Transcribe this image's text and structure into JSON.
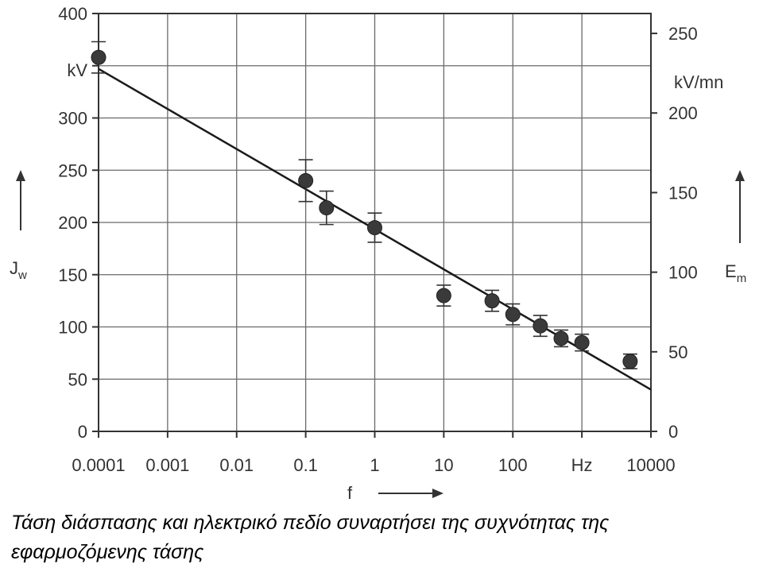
{
  "chart_data": {
    "type": "scatter",
    "x_scale": "log",
    "x_ticks": [
      {
        "value": 0.0001,
        "label": "0.0001"
      },
      {
        "value": 0.001,
        "label": "0.001"
      },
      {
        "value": 0.01,
        "label": "0.01"
      },
      {
        "value": 0.1,
        "label": "0.1"
      },
      {
        "value": 1,
        "label": "1"
      },
      {
        "value": 10,
        "label": "10"
      },
      {
        "value": 100,
        "label": "100"
      },
      {
        "value": 1000,
        "label": "Hz"
      },
      {
        "value": 10000,
        "label": "10000"
      }
    ],
    "xlim": [
      0.0001,
      10000
    ],
    "ylim": [
      0,
      400
    ],
    "y_ticks": [
      0,
      50,
      100,
      150,
      200,
      250,
      300,
      400
    ],
    "y_unit": "kV",
    "y2lim": [
      0,
      262.5
    ],
    "y2_ticks": [
      0,
      50,
      100,
      150,
      200,
      250
    ],
    "y2_unit": "kV/mn",
    "xlabel": "f",
    "ylabel": "J",
    "ylabel_sub": "w",
    "y2label": "E",
    "y2label_sub": "m",
    "grid": true,
    "series": [
      {
        "points": [
          {
            "x": 0.0001,
            "y": 358,
            "err": 15
          },
          {
            "x": 0.1,
            "y": 240,
            "err": 20
          },
          {
            "x": 0.2,
            "y": 214,
            "err": 16
          },
          {
            "x": 1,
            "y": 195,
            "err": 14
          },
          {
            "x": 10,
            "y": 130,
            "err": 10
          },
          {
            "x": 50,
            "y": 125,
            "err": 10
          },
          {
            "x": 100,
            "y": 112,
            "err": 10
          },
          {
            "x": 250,
            "y": 101,
            "err": 10
          },
          {
            "x": 500,
            "y": 89,
            "err": 8
          },
          {
            "x": 1000,
            "y": 85,
            "err": 8
          },
          {
            "x": 5000,
            "y": 67,
            "err": 7
          }
        ]
      }
    ],
    "fit_line": {
      "x": [
        0.0001,
        10000
      ],
      "y": [
        347,
        40
      ]
    },
    "colors": {
      "points": "#3a3a3a",
      "line": "#1a1a1a",
      "grid": "#6a6a6a",
      "axis": "#333333"
    }
  },
  "caption": "Τάση διάσπασης και ηλεκτρικό πεδίο συναρτήσει της συχνότητας της εφαρμοζόμενης τάσης"
}
